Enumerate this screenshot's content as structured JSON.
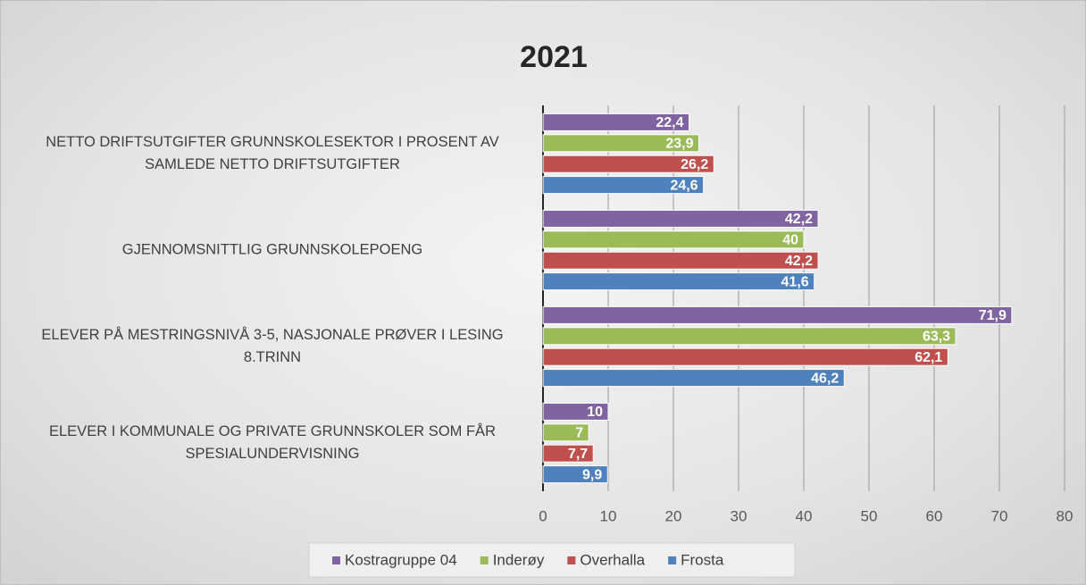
{
  "chart_data": {
    "type": "barh",
    "title": "2021",
    "categories": [
      "NETTO DRIFTSUTGIFTER GRUNNSKOLESEKTOR I PROSENT AV SAMLEDE NETTO DRIFTSUTGIFTER",
      "GJENNOMSNITTLIG GRUNNSKOLEPOENG",
      "ELEVER PÅ MESTRINGSNIVÅ 3-5, NASJONALE PRØVER I LESING 8.TRINN",
      "ELEVER I KOMMUNALE OG PRIVATE GRUNNSKOLER SOM FÅR SPESIALUNDERVISNING"
    ],
    "series": [
      {
        "name": "Kostragruppe 04",
        "color": "#8064a2",
        "values": [
          22.4,
          42.2,
          71.9,
          10
        ],
        "value_labels": [
          "22,4",
          "42,2",
          "71,9",
          "10"
        ]
      },
      {
        "name": "Inderøy",
        "color": "#9bbb59",
        "values": [
          23.9,
          40,
          63.3,
          7
        ],
        "value_labels": [
          "23,9",
          "40",
          "63,3",
          "7"
        ]
      },
      {
        "name": "Overhalla",
        "color": "#c0504d",
        "values": [
          26.2,
          42.2,
          62.1,
          7.7
        ],
        "value_labels": [
          "26,2",
          "42,2",
          "62,1",
          "7,7"
        ]
      },
      {
        "name": "Frosta",
        "color": "#4f81bd",
        "values": [
          24.6,
          41.6,
          46.2,
          9.9
        ],
        "value_labels": [
          "24,6",
          "41,6",
          "46,2",
          "9,9"
        ]
      }
    ],
    "xlim": [
      0,
      80
    ],
    "xticks": [
      0,
      10,
      20,
      30,
      40,
      50,
      60,
      70,
      80
    ],
    "grid": true,
    "legend": "bottom"
  }
}
